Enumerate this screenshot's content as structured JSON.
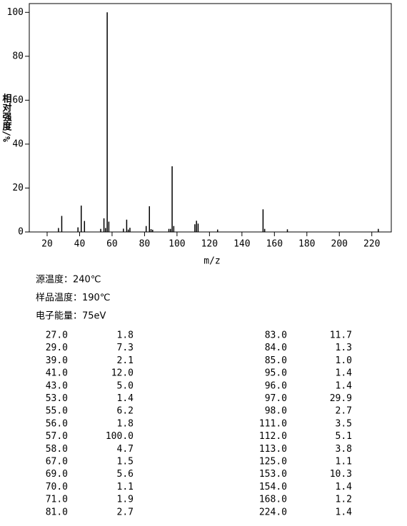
{
  "chart_data": {
    "type": "stem",
    "ylabel": "相对强度/%",
    "xlabel": "m/z",
    "x": [
      27,
      29,
      39,
      41,
      43,
      53,
      55,
      56,
      57,
      58,
      67,
      69,
      70,
      71,
      81,
      83,
      84,
      85,
      95,
      96,
      97,
      98,
      111,
      112,
      113,
      125,
      153,
      154,
      168,
      224
    ],
    "x_labels": [
      "27.0",
      "29.0",
      "39.0",
      "41.0",
      "43.0",
      "53.0",
      "55.0",
      "56.0",
      "57.0",
      "58.0",
      "67.0",
      "69.0",
      "70.0",
      "71.0",
      "81.0",
      "83.0",
      "84.0",
      "85.0",
      "95.0",
      "96.0",
      "97.0",
      "98.0",
      "111.0",
      "112.0",
      "113.0",
      "125.0",
      "153.0",
      "154.0",
      "168.0",
      "224.0"
    ],
    "values": [
      1.8,
      7.3,
      2.1,
      12.0,
      5.0,
      1.4,
      6.2,
      1.8,
      100.0,
      4.7,
      1.5,
      5.6,
      1.1,
      1.9,
      2.7,
      11.7,
      1.3,
      1.0,
      1.4,
      1.4,
      29.9,
      2.7,
      3.5,
      5.1,
      3.8,
      1.1,
      10.3,
      1.4,
      1.2,
      1.4
    ],
    "value_labels": [
      "1.8",
      "7.3",
      "2.1",
      "12.0",
      "5.0",
      "1.4",
      "6.2",
      "1.8",
      "100.0",
      "4.7",
      "1.5",
      "5.6",
      "1.1",
      "1.9",
      "2.7",
      "11.7",
      "1.3",
      "1.0",
      "1.4",
      "1.4",
      "29.9",
      "2.7",
      "3.5",
      "5.1",
      "3.8",
      "1.1",
      "10.3",
      "1.4",
      "1.2",
      "1.4"
    ],
    "color": "#000000",
    "xlim": [
      9,
      232
    ],
    "xticks": [
      20,
      40,
      60,
      80,
      100,
      120,
      140,
      160,
      180,
      200,
      220
    ],
    "ylim": [
      0,
      104
    ],
    "yticks": [
      0,
      20,
      40,
      60,
      80,
      100
    ],
    "grid": false
  },
  "conditions": [
    "源温度：240℃",
    "样品温度：190℃",
    "电子能量：75eV"
  ]
}
